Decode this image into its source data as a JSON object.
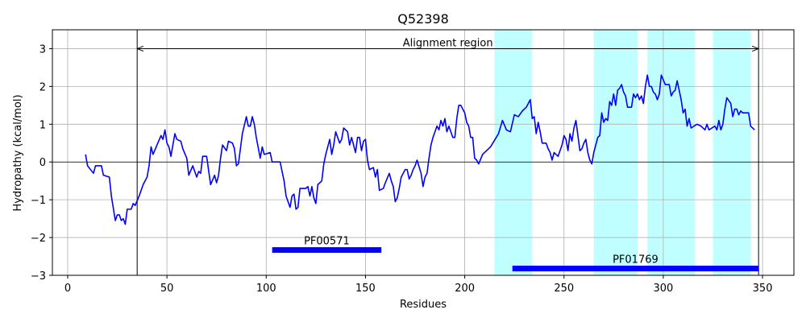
{
  "chart_data": {
    "type": "line",
    "title": "Q52398",
    "x_label": "Residues",
    "y_label": "Hydropathy (kcal/mol)",
    "x": [
      9,
      10,
      13,
      14,
      17,
      18,
      21,
      22,
      24,
      25,
      26,
      27,
      28,
      29,
      30,
      32,
      33,
      34,
      36,
      38,
      40,
      41,
      42,
      43,
      45,
      47,
      48,
      49,
      50,
      51,
      52,
      53,
      54,
      55,
      57,
      58,
      60,
      61,
      63,
      65,
      66,
      67,
      68,
      70,
      72,
      74,
      75,
      76,
      77,
      78,
      80,
      81,
      83,
      84,
      85,
      86,
      88,
      90,
      91,
      92,
      93,
      94,
      95,
      97,
      98,
      99,
      102,
      103,
      107,
      109,
      110,
      112,
      113,
      114,
      115,
      116,
      117,
      120,
      121,
      122,
      123,
      124,
      125,
      126,
      128,
      129,
      130,
      132,
      133,
      134,
      135,
      137,
      138,
      139,
      141,
      142,
      143,
      145,
      146,
      147,
      148,
      149,
      150,
      151,
      152,
      154,
      155,
      156,
      157,
      159,
      160,
      162,
      163,
      164,
      165,
      166,
      167,
      168,
      170,
      171,
      172,
      173,
      174,
      175,
      176,
      178,
      179,
      180,
      181,
      182,
      183,
      184,
      186,
      187,
      188,
      189,
      190,
      191,
      192,
      194,
      195,
      196,
      197,
      198,
      199,
      200,
      201,
      202,
      203,
      204,
      205,
      206,
      207,
      209,
      213,
      217,
      219,
      221,
      223,
      225,
      227,
      229,
      231,
      233,
      234,
      235,
      236,
      237,
      238,
      239,
      241,
      242,
      243,
      244,
      245,
      247,
      249,
      250,
      251,
      252,
      253,
      254,
      255,
      256,
      257,
      258,
      259,
      260,
      261,
      262,
      263,
      264,
      265,
      266,
      267,
      268,
      269,
      270,
      271,
      272,
      273,
      274,
      275,
      276,
      277,
      278,
      279,
      280,
      281,
      282,
      284,
      285,
      286,
      287,
      288,
      289,
      290,
      291,
      292,
      293,
      294,
      295,
      296,
      297,
      298,
      299,
      301,
      303,
      304,
      305,
      306,
      307,
      309,
      310,
      311,
      312,
      313,
      314,
      317,
      319,
      321,
      322,
      323,
      326,
      327,
      328,
      329,
      330,
      331,
      332,
      334,
      335,
      336,
      337,
      338,
      339,
      340,
      343,
      344,
      346
    ],
    "series": [
      {
        "color": "#0000ff",
        "values": [
          0.2,
          -0.1,
          -0.3,
          -0.1,
          -0.1,
          -0.35,
          -0.4,
          -0.9,
          -1.55,
          -1.4,
          -1.4,
          -1.55,
          -1.5,
          -1.65,
          -1.25,
          -1.25,
          -1.1,
          -1.15,
          -0.9,
          -0.6,
          -0.4,
          -0.1,
          0.4,
          0.2,
          0.45,
          0.7,
          0.6,
          0.85,
          0.5,
          0.4,
          0.15,
          0.45,
          0.75,
          0.6,
          0.55,
          0.35,
          0.1,
          -0.35,
          -0.1,
          -0.4,
          -0.25,
          -0.3,
          0.15,
          0.15,
          -0.6,
          -0.35,
          -0.55,
          -0.35,
          0.1,
          0.45,
          0.3,
          0.55,
          0.5,
          0.35,
          -0.1,
          -0.05,
          0.75,
          1.2,
          0.95,
          0.95,
          1.2,
          1.0,
          0.65,
          0.1,
          0.4,
          0.2,
          0.25,
          0.0,
          0.0,
          -0.5,
          -0.9,
          -1.2,
          -0.9,
          -0.85,
          -1.25,
          -1.2,
          -0.7,
          -0.7,
          -0.65,
          -0.9,
          -0.65,
          -0.95,
          -1.1,
          -0.6,
          -0.5,
          -0.05,
          0.2,
          0.6,
          0.2,
          0.45,
          0.8,
          0.5,
          0.6,
          0.9,
          0.8,
          0.45,
          0.65,
          0.25,
          0.65,
          0.65,
          0.3,
          0.55,
          0.6,
          0.05,
          -0.2,
          -0.15,
          -0.4,
          -0.2,
          -0.75,
          -0.7,
          -0.55,
          -0.3,
          -0.5,
          -0.65,
          -1.05,
          -0.95,
          -0.7,
          -0.4,
          -0.2,
          -0.2,
          -0.45,
          -0.35,
          -0.2,
          -0.1,
          0.05,
          -0.3,
          -0.65,
          -0.4,
          -0.3,
          0.1,
          0.45,
          0.65,
          0.95,
          0.85,
          1.1,
          0.95,
          1.15,
          0.8,
          0.95,
          0.65,
          0.65,
          1.15,
          1.5,
          1.5,
          1.4,
          1.3,
          1.05,
          0.95,
          0.65,
          0.65,
          0.1,
          0.05,
          -0.05,
          0.2,
          0.4,
          0.75,
          1.1,
          0.85,
          0.8,
          1.25,
          1.2,
          1.35,
          1.45,
          1.65,
          1.15,
          1.2,
          0.75,
          1.05,
          0.8,
          0.5,
          0.5,
          0.35,
          0.25,
          0.05,
          0.25,
          0.15,
          0.45,
          0.7,
          0.6,
          0.3,
          0.75,
          0.55,
          0.9,
          1.1,
          0.7,
          0.3,
          0.35,
          0.5,
          0.6,
          0.25,
          0.05,
          -0.05,
          0.25,
          0.45,
          0.65,
          0.7,
          1.3,
          1.05,
          1.15,
          1.1,
          1.6,
          1.5,
          1.8,
          1.5,
          1.9,
          1.95,
          2.05,
          1.85,
          1.75,
          1.45,
          1.45,
          1.8,
          1.7,
          1.8,
          1.65,
          1.75,
          1.55,
          2.0,
          2.3,
          2.0,
          2.0,
          1.85,
          1.8,
          1.65,
          1.8,
          2.3,
          2.05,
          2.05,
          1.75,
          1.85,
          1.9,
          2.15,
          1.65,
          1.3,
          1.4,
          0.95,
          1.15,
          0.9,
          1.0,
          0.95,
          0.85,
          1.0,
          0.85,
          0.95,
          0.85,
          1.1,
          0.85,
          1.0,
          1.4,
          1.7,
          1.55,
          1.2,
          1.4,
          1.4,
          1.25,
          1.35,
          1.3,
          1.3,
          0.95,
          0.85
        ]
      }
    ],
    "xlim": [
      -7.7,
      365.8
    ],
    "ylim": [
      -3,
      3.5
    ],
    "xticks": [
      0,
      50,
      100,
      150,
      200,
      250,
      300,
      350
    ],
    "yticks": [
      {
        "value": -3,
        "label": "−3"
      },
      {
        "value": -2,
        "label": "−2"
      },
      {
        "value": -1,
        "label": "−1"
      },
      0,
      1,
      2,
      3
    ],
    "grid": true,
    "hline": 0,
    "spans": {
      "color": "#c0ffff",
      "ranges": [
        [
          215,
          234
        ],
        [
          265,
          287
        ],
        [
          292,
          316
        ],
        [
          325,
          344
        ]
      ]
    },
    "alignment_region": {
      "label": "Alignment region",
      "start": 35,
      "end": 348,
      "y": 3
    },
    "domains": [
      {
        "label": "PF00571",
        "start": 103,
        "end": 158,
        "y": -2.33,
        "color": "#0000ff"
      },
      {
        "label": "PF01769",
        "start": 224,
        "end": 348,
        "y": -2.82,
        "color": "#0000ff"
      }
    ]
  }
}
